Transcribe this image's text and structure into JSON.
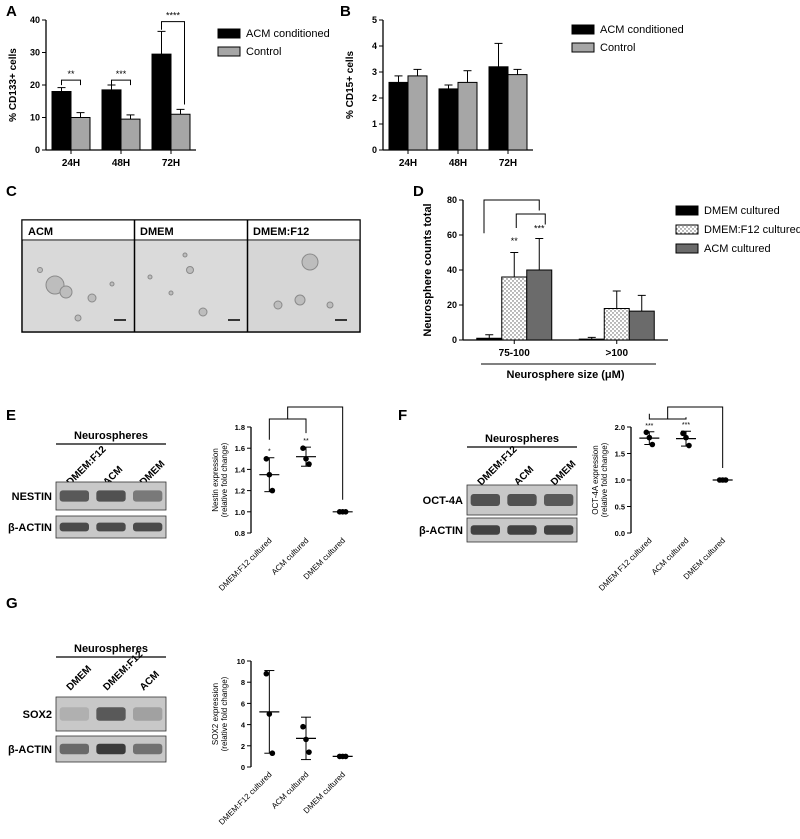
{
  "colors": {
    "black": "#000000",
    "gray": "#a6a6a6",
    "dark_gray": "#6b6b6b",
    "dotted": "#ffffff",
    "micrograph": "#d9d9d9",
    "blot_band": "#2a2a2a",
    "blot_bg": "#c8c8c8"
  },
  "panels": {
    "A": {
      "letter": "A"
    },
    "B": {
      "letter": "B"
    },
    "C": {
      "letter": "C",
      "labels": [
        "ACM",
        "DMEM",
        "DMEM:F12"
      ]
    },
    "D": {
      "letter": "D"
    },
    "E": {
      "letter": "E",
      "blot_header": "Neurospheres",
      "lanes": [
        "DMEM:F12",
        "ACM",
        "DMEM"
      ],
      "rows": [
        "NESTIN",
        "β-ACTIN"
      ]
    },
    "F": {
      "letter": "F",
      "blot_header": "Neurospheres",
      "lanes": [
        "DMEM:F12",
        "ACM",
        "DMEM"
      ],
      "rows": [
        "OCT-4A",
        "β-ACTIN"
      ]
    },
    "G": {
      "letter": "G",
      "blot_header": "Neurospheres",
      "lanes": [
        "DMEM",
        "DMEM:F12",
        "ACM"
      ],
      "rows": [
        "SOX2",
        "β-ACTIN"
      ]
    }
  },
  "chart_data": [
    {
      "id": "A",
      "type": "bar",
      "categories": [
        "24H",
        "48H",
        "72H"
      ],
      "ylabel": "% CD133+ cells",
      "ylim": [
        0,
        40
      ],
      "yticks": [
        0,
        10,
        20,
        30,
        40
      ],
      "series": [
        {
          "name": "ACM conditioned",
          "color": "#000000",
          "values": [
            18,
            18.5,
            29.5
          ],
          "err": [
            1.2,
            1.5,
            7
          ]
        },
        {
          "name": "Control",
          "color": "#a6a6a6",
          "values": [
            10,
            9.5,
            11
          ],
          "err": [
            1.5,
            1.3,
            1.5
          ]
        }
      ],
      "legend": "top-right",
      "significance": [
        "**",
        "***",
        "****"
      ]
    },
    {
      "id": "B",
      "type": "bar",
      "categories": [
        "24H",
        "48H",
        "72H"
      ],
      "ylabel": "% CD15+ cells",
      "ylim": [
        0,
        5
      ],
      "yticks": [
        0,
        1,
        2,
        3,
        4,
        5
      ],
      "series": [
        {
          "name": "ACM conditioned",
          "color": "#000000",
          "values": [
            2.6,
            2.35,
            3.2
          ],
          "err": [
            0.25,
            0.15,
            0.9
          ]
        },
        {
          "name": "Control",
          "color": "#a6a6a6",
          "values": [
            2.85,
            2.6,
            2.9
          ],
          "err": [
            0.25,
            0.45,
            0.2
          ]
        }
      ],
      "legend": "top-right"
    },
    {
      "id": "D",
      "type": "bar",
      "categories": [
        "75-100",
        ">100"
      ],
      "ylabel": "Neurosphere counts total",
      "xlabel": "Neurosphere size (μM)",
      "ylim": [
        0,
        80
      ],
      "yticks": [
        0,
        20,
        40,
        60,
        80
      ],
      "series": [
        {
          "name": "DMEM cultured",
          "color": "#000000",
          "values": [
            1,
            0.5
          ],
          "err": [
            2,
            1
          ]
        },
        {
          "name": "DMEM:F12 cultured",
          "color": "#ffffff",
          "pattern": "dots",
          "values": [
            36,
            18
          ],
          "err": [
            14,
            10
          ]
        },
        {
          "name": "ACM cultured",
          "color": "#6b6b6b",
          "values": [
            40,
            16.5
          ],
          "err": [
            18,
            9
          ]
        }
      ],
      "legend": "top-right",
      "significance": [
        "**",
        "***"
      ]
    },
    {
      "id": "E",
      "type": "scatter",
      "categories": [
        "DMEM:F12 cultured",
        "ACM cultured",
        "DMEM cultured"
      ],
      "ylabel": "Nestin expression (relative fold change)",
      "ylim": [
        0.8,
        1.8
      ],
      "yticks": [
        "0.8",
        "1.0",
        "1.2",
        "1.4",
        "1.6",
        "1.8"
      ],
      "points": [
        [
          1.5,
          1.35,
          1.2
        ],
        [
          1.6,
          1.5,
          1.45
        ],
        [
          1.0,
          1.0,
          1.0
        ]
      ],
      "means": [
        1.35,
        1.52,
        1.0
      ],
      "err": [
        0.16,
        0.09,
        0
      ],
      "significance": [
        "*",
        "**",
        ""
      ]
    },
    {
      "id": "F",
      "type": "scatter",
      "categories": [
        "DMEM F12 cultured",
        "ACM cultured",
        "DMEM cultured"
      ],
      "ylabel": "OCT-4A expression (relative fold change)",
      "ylim": [
        0,
        2
      ],
      "yticks": [
        "0.0",
        "0.5",
        "1.0",
        "1.5",
        "2.0"
      ],
      "points": [
        [
          1.9,
          1.8,
          1.67
        ],
        [
          1.88,
          1.8,
          1.65
        ],
        [
          1.0,
          1.0,
          1.0
        ]
      ],
      "means": [
        1.79,
        1.78,
        1.0
      ],
      "err": [
        0.12,
        0.14,
        0
      ],
      "significance": [
        "***",
        "***",
        ""
      ]
    },
    {
      "id": "G",
      "type": "scatter",
      "categories": [
        "DMEM:F12 cultured",
        "ACM cultured",
        "DMEM cultured"
      ],
      "ylabel": "SOX2 expression (relative fold change)",
      "ylim": [
        0,
        10
      ],
      "yticks": [
        "0",
        "2",
        "4",
        "6",
        "8",
        "10"
      ],
      "points": [
        [
          8.8,
          5.0,
          1.3
        ],
        [
          3.8,
          2.6,
          1.4
        ],
        [
          1.0,
          1.0,
          1.0
        ]
      ],
      "means": [
        5.2,
        2.7,
        1.0
      ],
      "err": [
        3.9,
        2.0,
        0
      ],
      "significance": [
        "",
        "",
        ""
      ]
    }
  ]
}
